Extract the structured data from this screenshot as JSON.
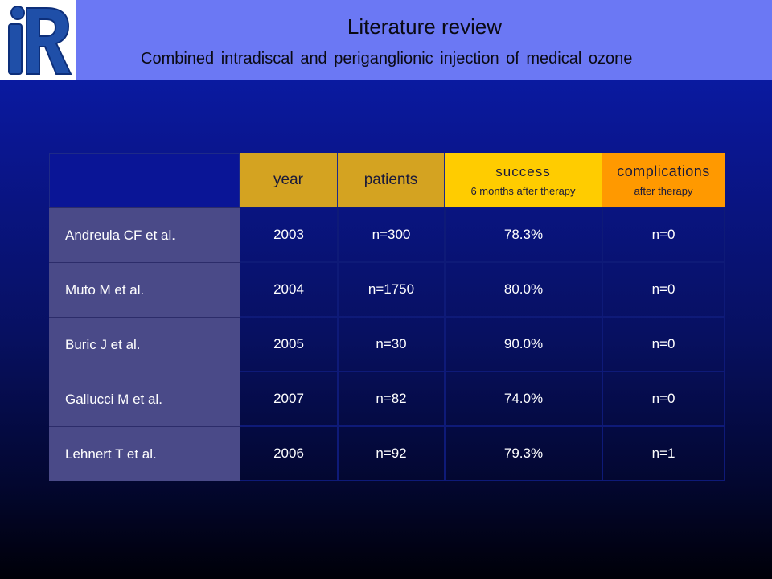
{
  "header": {
    "title": "Literature review",
    "subtitle": "Combined intradiscal and periganglionic injection of medical ozone",
    "logo_text": "iR"
  },
  "table": {
    "columns": [
      {
        "key": "year",
        "label": "year",
        "sublabel": ""
      },
      {
        "key": "patients",
        "label": "patients",
        "sublabel": ""
      },
      {
        "key": "success",
        "label": "success",
        "sublabel": "6 months after therapy"
      },
      {
        "key": "complications",
        "label": "complications",
        "sublabel": "after therapy"
      }
    ],
    "rows": [
      {
        "author": "Andreula CF et al.",
        "year": "2003",
        "patients": "n=300",
        "success": "78.3%",
        "complications": "n=0"
      },
      {
        "author": "Muto M et al.",
        "year": "2004",
        "patients": "n=1750",
        "success": "80.0%",
        "complications": "n=0"
      },
      {
        "author": "Buric J et al.",
        "year": "2005",
        "patients": "n=30",
        "success": "90.0%",
        "complications": "n=0"
      },
      {
        "author": "Gallucci M et al.",
        "year": "2007",
        "patients": "n=82",
        "success": "74.0%",
        "complications": "n=0"
      },
      {
        "author": "Lehnert T et al.",
        "year": "2006",
        "patients": "n=92",
        "success": "79.3%",
        "complications": "n=1"
      }
    ]
  },
  "colors": {
    "header_bar": "#6b78f4",
    "year_patients_header": "#d4a321",
    "success_header": "#ffcc00",
    "complications_header": "#ff9900",
    "author_cell": "#4a4a88",
    "logo_blue": "#1f4fa8"
  }
}
